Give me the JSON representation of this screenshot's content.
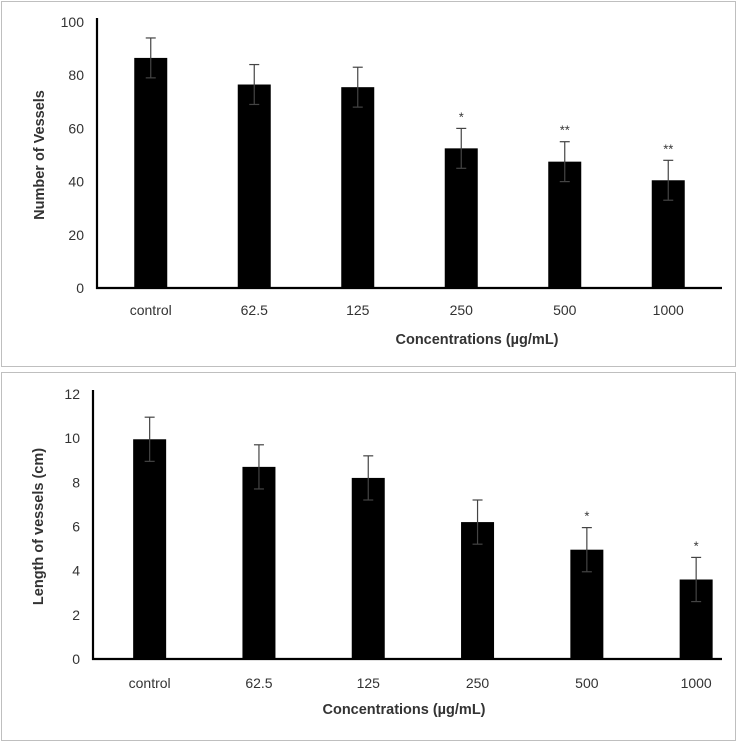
{
  "chart_data": [
    {
      "type": "bar",
      "title": "",
      "xlabel": "Concentrations (µg/mL)",
      "ylabel": "Number of Vessels",
      "categories": [
        "control",
        "62.5",
        "125",
        "250",
        "500",
        "1000"
      ],
      "values": [
        86.5,
        76.5,
        75.5,
        52.5,
        47.5,
        40.5
      ],
      "error": [
        7.5,
        7.5,
        7.5,
        7.5,
        7.5,
        7.5
      ],
      "significance": [
        "",
        "",
        "",
        "*",
        "**",
        "**"
      ],
      "ylim": [
        0,
        100
      ],
      "yticks": [
        "0",
        "20",
        "40",
        "60",
        "80",
        "100"
      ],
      "color": "#000000",
      "grid": false
    },
    {
      "type": "bar",
      "title": "",
      "xlabel": "Concentrations (µg/mL)",
      "ylabel": "Length of vessels (cm)",
      "categories": [
        "control",
        "62.5",
        "125",
        "250",
        "500",
        "1000"
      ],
      "values": [
        9.95,
        8.7,
        8.2,
        6.2,
        4.95,
        3.6
      ],
      "error": [
        1.0,
        1.0,
        1.0,
        1.0,
        1.0,
        1.0
      ],
      "significance": [
        "",
        "",
        "",
        "",
        "*",
        "*"
      ],
      "ylim": [
        0,
        12
      ],
      "yticks": [
        "0",
        "2",
        "4",
        "6",
        "8",
        "10",
        "12"
      ],
      "color": "#000000",
      "grid": false
    }
  ]
}
